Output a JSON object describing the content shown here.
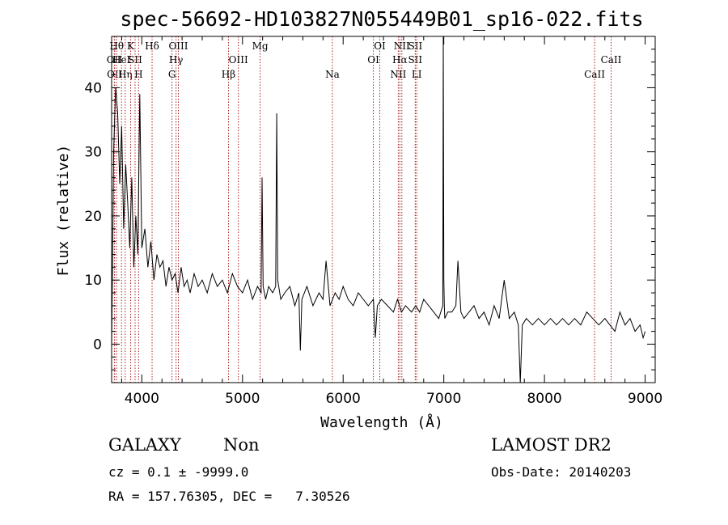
{
  "chart_data": {
    "type": "line",
    "title": "spec-56692-HD103827N055449B01_sp16-022.fits",
    "xlabel": "Wavelength (Å)",
    "ylabel": "Flux (relative)",
    "xlim": [
      3700,
      9100
    ],
    "ylim": [
      -6,
      48
    ],
    "xticks": [
      4000,
      5000,
      6000,
      7000,
      8000,
      9000
    ],
    "xtick_labels": [
      "4000",
      "5000",
      "6000",
      "7000",
      "8000",
      "9000"
    ],
    "yticks": [
      0,
      10,
      20,
      30,
      40
    ],
    "ytick_labels": [
      "0",
      "10",
      "20",
      "30",
      "40"
    ],
    "series": [
      {
        "name": "spectrum",
        "x": [
          3700,
          3720,
          3740,
          3760,
          3780,
          3800,
          3820,
          3840,
          3860,
          3880,
          3900,
          3920,
          3940,
          3960,
          3980,
          4000,
          4030,
          4060,
          4090,
          4120,
          4150,
          4180,
          4210,
          4240,
          4270,
          4300,
          4330,
          4360,
          4390,
          4420,
          4450,
          4480,
          4520,
          4560,
          4600,
          4650,
          4700,
          4750,
          4800,
          4850,
          4900,
          4950,
          5000,
          5050,
          5100,
          5150,
          5185,
          5195,
          5205,
          5230,
          5260,
          5300,
          5330,
          5340,
          5350,
          5380,
          5420,
          5470,
          5520,
          5560,
          5575,
          5590,
          5640,
          5700,
          5760,
          5800,
          5830,
          5870,
          5920,
          5960,
          6000,
          6050,
          6100,
          6150,
          6200,
          6250,
          6300,
          6320,
          6340,
          6380,
          6440,
          6500,
          6540,
          6560,
          6580,
          6620,
          6680,
          6720,
          6760,
          6800,
          6850,
          6900,
          6950,
          6990,
          6995,
          7000,
          7005,
          7010,
          7040,
          7080,
          7120,
          7140,
          7170,
          7200,
          7250,
          7300,
          7350,
          7400,
          7450,
          7500,
          7550,
          7600,
          7650,
          7700,
          7740,
          7760,
          7780,
          7820,
          7880,
          7940,
          8000,
          8060,
          8120,
          8180,
          8240,
          8300,
          8360,
          8420,
          8480,
          8540,
          8600,
          8650,
          8700,
          8750,
          8800,
          8850,
          8900,
          8950,
          8980,
          9000
        ],
        "y": [
          -1,
          30,
          40,
          36,
          25,
          34,
          18,
          28,
          22,
          15,
          26,
          12,
          20,
          14,
          39,
          15,
          18,
          12,
          16,
          10,
          14,
          12,
          13,
          9,
          12,
          10,
          11,
          8,
          12,
          9,
          10,
          8,
          11,
          9,
          10,
          8,
          11,
          9,
          10,
          8,
          11,
          9,
          8,
          10,
          7,
          9,
          8,
          26,
          9,
          7,
          9,
          8,
          9,
          36,
          10,
          7,
          8,
          9,
          6,
          8,
          -1,
          7,
          9,
          6,
          8,
          7,
          13,
          6,
          8,
          7,
          9,
          7,
          6,
          8,
          7,
          6,
          7,
          1,
          6,
          7,
          6,
          5,
          7,
          6,
          5,
          6,
          5,
          6,
          5,
          7,
          6,
          5,
          4,
          6,
          48,
          10,
          6,
          4,
          5,
          5,
          6,
          13,
          5,
          4,
          5,
          6,
          4,
          5,
          3,
          6,
          4,
          10,
          4,
          5,
          3,
          -6,
          3,
          4,
          3,
          4,
          3,
          4,
          3,
          4,
          3,
          4,
          3,
          5,
          4,
          3,
          4,
          3,
          2,
          5,
          3,
          4,
          2,
          3,
          1,
          2
        ]
      }
    ],
    "lines": [
      {
        "wl": 3727,
        "label": "OII",
        "row": 1
      },
      {
        "wl": 3730,
        "label": "OII",
        "row": 2
      },
      {
        "wl": 3750,
        "label": "Hθ",
        "row": 0
      },
      {
        "wl": 3798,
        "label": "HeI",
        "row": 1
      },
      {
        "wl": 3835,
        "label": "Hη",
        "row": 2
      },
      {
        "wl": 3889,
        "label": "K",
        "row": 0
      },
      {
        "wl": 3933,
        "label": "SII",
        "row": 1
      },
      {
        "wl": 3968,
        "label": "H",
        "row": 2
      },
      {
        "wl": 4102,
        "label": "Hδ",
        "row": 0
      },
      {
        "wl": 4300,
        "label": "G",
        "row": 2
      },
      {
        "wl": 4340,
        "label": "Hγ",
        "row": 1
      },
      {
        "wl": 4363,
        "label": "OIII",
        "row": 0
      },
      {
        "wl": 4861,
        "label": "Hβ",
        "row": 2
      },
      {
        "wl": 4959,
        "label": "OIII",
        "row": 1
      },
      {
        "wl": 5175,
        "label": "Mg",
        "row": 0
      },
      {
        "wl": 5893,
        "label": "Na",
        "row": 2
      },
      {
        "wl": 6300,
        "label": "OI",
        "row": 1
      },
      {
        "wl": 6364,
        "label": "OI",
        "row": 0
      },
      {
        "wl": 6548,
        "label": "NII",
        "row": 2
      },
      {
        "wl": 6563,
        "label": "Hα",
        "row": 1
      },
      {
        "wl": 6583,
        "label": "NII",
        "row": 0
      },
      {
        "wl": 6716,
        "label": "SII",
        "row": 1
      },
      {
        "wl": 6717,
        "label": "SII",
        "row": 0
      },
      {
        "wl": 6731,
        "label": "LI",
        "row": 2
      },
      {
        "wl": 8498,
        "label": "CaII",
        "row": 2
      },
      {
        "wl": 8662,
        "label": "CaII",
        "row": 1
      }
    ]
  },
  "info": {
    "class_label": "GALAXY",
    "subclass_label": "Non",
    "survey_label": "LAMOST DR2",
    "cz_line": "cz = 0.1 ± -9999.0",
    "obs_date_line": "Obs-Date: 20140203",
    "coords_line": "RA = 157.76305, DEC =   7.30526"
  },
  "colors": {
    "axis": "#000000",
    "spectrum": "#000000",
    "line_marker": "#aa2222"
  }
}
